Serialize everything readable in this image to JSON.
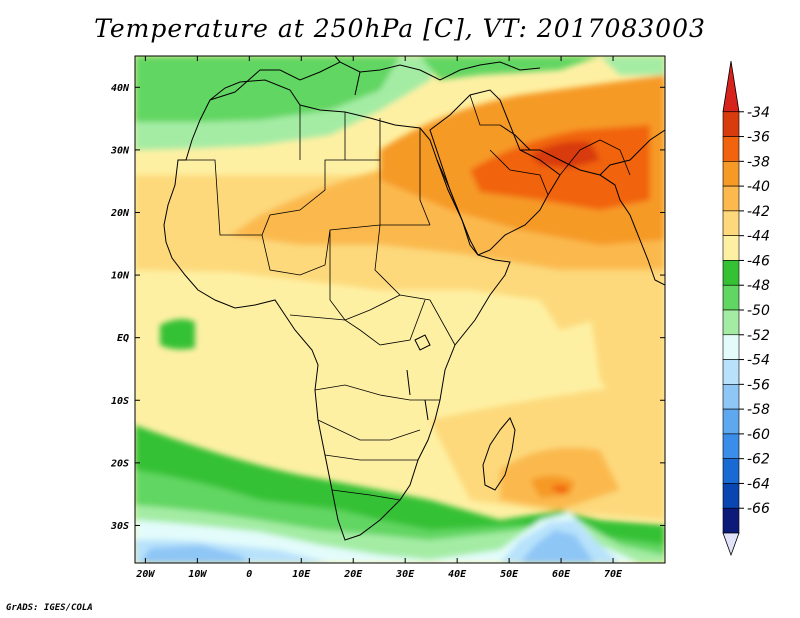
{
  "title": "Temperature at 250hPa [C], VT: 2017083003",
  "footer": "GrADS: IGES/COLA",
  "map": {
    "lon_range": [
      -22,
      80
    ],
    "lat_range": [
      -36,
      45
    ],
    "lat_ticks": [
      {
        "value": 40,
        "label": "40N"
      },
      {
        "value": 30,
        "label": "30N"
      },
      {
        "value": 20,
        "label": "20N"
      },
      {
        "value": 10,
        "label": "10N"
      },
      {
        "value": 0,
        "label": "EQ"
      },
      {
        "value": -10,
        "label": "10S"
      },
      {
        "value": -20,
        "label": "20S"
      },
      {
        "value": -30,
        "label": "30S"
      }
    ],
    "lon_ticks": [
      {
        "value": -20,
        "label": "20W"
      },
      {
        "value": -10,
        "label": "10W"
      },
      {
        "value": 0,
        "label": "0"
      },
      {
        "value": 10,
        "label": "10E"
      },
      {
        "value": 20,
        "label": "20E"
      },
      {
        "value": 30,
        "label": "30E"
      },
      {
        "value": 40,
        "label": "40E"
      },
      {
        "value": 50,
        "label": "50E"
      },
      {
        "value": 60,
        "label": "60E"
      },
      {
        "value": 70,
        "label": "70E"
      }
    ]
  },
  "colorbar": {
    "levels": [
      {
        "label": "-34",
        "color": "#d83b0c"
      },
      {
        "label": "-36",
        "color": "#f1640d"
      },
      {
        "label": "-38",
        "color": "#f69a25"
      },
      {
        "label": "-40",
        "color": "#fbb94e"
      },
      {
        "label": "-42",
        "color": "#fdd97b"
      },
      {
        "label": "-44",
        "color": "#fef0a3"
      },
      {
        "label": "-46",
        "color": "#34c134"
      },
      {
        "label": "-48",
        "color": "#62d662"
      },
      {
        "label": "-50",
        "color": "#a4eca4"
      },
      {
        "label": "-52",
        "color": "#e3fcfb"
      },
      {
        "label": "-54",
        "color": "#b8e2fb"
      },
      {
        "label": "-56",
        "color": "#8ec6f6"
      },
      {
        "label": "-58",
        "color": "#5ea8f0"
      },
      {
        "label": "-60",
        "color": "#3a8de9"
      },
      {
        "label": "-62",
        "color": "#1a6ad4"
      },
      {
        "label": "-64",
        "color": "#0a46b2"
      },
      {
        "label": "-66",
        "color": "#0c1a7a"
      }
    ],
    "top_arrow_color": "#d8231c",
    "bottom_arrow_color": "#e1e3fb"
  }
}
